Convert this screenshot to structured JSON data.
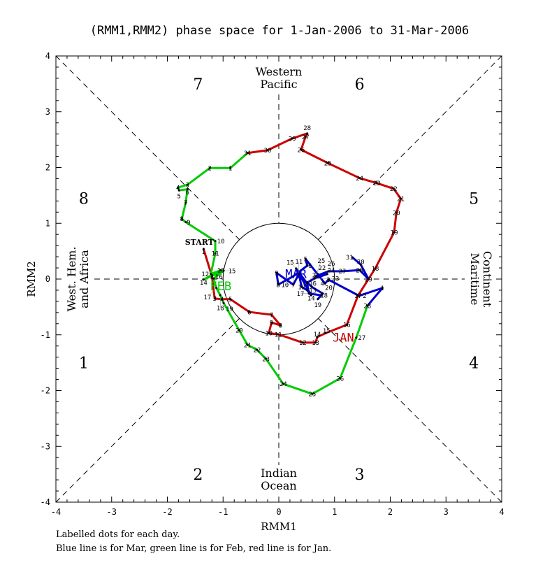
{
  "chart_data": {
    "type": "line",
    "title": "(RMM1,RMM2) phase space for  1-Jan-2006 to 31-Mar-2006",
    "xlabel": "RMM1",
    "ylabel": "RMM2",
    "xlim": [
      -4,
      4
    ],
    "ylim": [
      -4,
      4
    ],
    "xticks": [
      "-4",
      "-3",
      "-2",
      "-1",
      "0",
      "1",
      "2",
      "3",
      "4"
    ],
    "yticks": [
      "-4",
      "-3",
      "-2",
      "-1",
      "0",
      "1",
      "2",
      "3",
      "4"
    ],
    "phases": [
      "1",
      "2",
      "3",
      "4",
      "5",
      "6",
      "7",
      "8"
    ],
    "regions": {
      "top": [
        "Western",
        "Pacific"
      ],
      "bottom": [
        "Indian",
        "Ocean"
      ],
      "left": [
        "West. Hem.",
        "and Africa"
      ],
      "right": [
        "Maritime",
        "Continent"
      ]
    },
    "start_label": "START",
    "footer": [
      "Labelled dots for each day.",
      "Blue line is for Mar, green line is for Feb, red line is for Jan."
    ],
    "series": [
      {
        "name": "JAN",
        "color": "#cc0000",
        "points": [
          [
            -1.35,
            0.54
          ],
          [
            -1.2,
            0.05
          ],
          [
            -1.15,
            -0.35
          ],
          [
            -1.02,
            -0.36
          ],
          [
            -0.87,
            -0.36
          ],
          [
            -0.53,
            -0.59
          ],
          [
            -0.13,
            -0.64
          ],
          [
            0.03,
            -0.83
          ],
          [
            -0.13,
            -0.78
          ],
          [
            -0.18,
            -0.97
          ],
          [
            -0.01,
            -0.99
          ],
          [
            0.43,
            -1.14
          ],
          [
            0.66,
            -1.14
          ],
          [
            0.69,
            -1.04
          ],
          [
            0.84,
            -0.97
          ],
          [
            1.22,
            -0.82
          ],
          [
            1.42,
            -0.3
          ],
          [
            1.73,
            0.19
          ],
          [
            2.07,
            0.84
          ],
          [
            2.11,
            1.19
          ],
          [
            2.19,
            1.44
          ],
          [
            2.06,
            1.62
          ],
          [
            1.76,
            1.72
          ],
          [
            1.45,
            1.81
          ],
          [
            0.88,
            2.08
          ],
          [
            0.4,
            2.32
          ],
          [
            0.48,
            2.55
          ],
          [
            0.51,
            2.61
          ],
          [
            0.24,
            2.52
          ],
          [
            -0.2,
            2.31
          ],
          [
            -0.56,
            2.26
          ]
        ]
      },
      {
        "name": "FEB",
        "color": "#00cc00",
        "points": [
          [
            -0.87,
            1.99
          ],
          [
            -1.24,
            1.99
          ],
          [
            -1.64,
            1.69
          ],
          [
            -1.81,
            1.64
          ],
          [
            -1.79,
            1.59
          ],
          [
            -1.64,
            1.61
          ],
          [
            -1.67,
            1.37
          ],
          [
            -1.74,
            1.08
          ],
          [
            -1.67,
            1.02
          ],
          [
            -1.14,
            0.68
          ],
          [
            -1.14,
            0.46
          ],
          [
            -1.22,
            0.09
          ],
          [
            -1.04,
            0.16
          ],
          [
            -1.35,
            -0.01
          ],
          [
            -0.99,
            0.15
          ],
          [
            -1.17,
            0.01
          ],
          [
            -1.12,
            -0.16
          ],
          [
            -1.05,
            -0.29
          ],
          [
            -0.99,
            -0.43
          ],
          [
            -0.71,
            -0.92
          ],
          [
            -0.56,
            -1.18
          ],
          [
            -0.39,
            -1.27
          ],
          [
            -0.23,
            -1.43
          ],
          [
            0.08,
            -1.88
          ],
          [
            0.6,
            -2.06
          ],
          [
            1.1,
            -1.78
          ],
          [
            1.39,
            -1.05
          ],
          [
            1.59,
            -0.48
          ]
        ]
      },
      {
        "name": "MAR",
        "color": "#0000cc",
        "points": [
          [
            1.86,
            -0.16
          ],
          [
            1.44,
            -0.3
          ],
          [
            0.89,
            -0.01
          ],
          [
            0.83,
            -0.08
          ],
          [
            0.48,
            0.36
          ],
          [
            0.51,
            0.24
          ],
          [
            0.26,
            0.05
          ],
          [
            -0.01,
            -0.1
          ],
          [
            -0.04,
            0.11
          ],
          [
            0.26,
            -0.1
          ],
          [
            0.36,
            0.09
          ],
          [
            0.41,
            -0.14
          ],
          [
            0.51,
            -0.2
          ],
          [
            0.58,
            -0.29
          ],
          [
            0.31,
            0.19
          ],
          [
            0.51,
            -0.08
          ],
          [
            0.54,
            -0.26
          ],
          [
            0.76,
            -0.29
          ],
          [
            0.7,
            -0.36
          ],
          [
            0.79,
            -0.26
          ],
          [
            0.59,
            -0.14
          ],
          [
            0.51,
            -0.06
          ],
          [
            0.64,
            0.01
          ],
          [
            0.87,
            0.09
          ],
          [
            0.66,
            0.05
          ],
          [
            0.89,
            0.14
          ],
          [
            1.14,
            0.14
          ],
          [
            1.45,
            0.16
          ],
          [
            1.61,
            0.0
          ],
          [
            1.47,
            0.26
          ],
          [
            1.32,
            0.39
          ]
        ]
      }
    ]
  }
}
